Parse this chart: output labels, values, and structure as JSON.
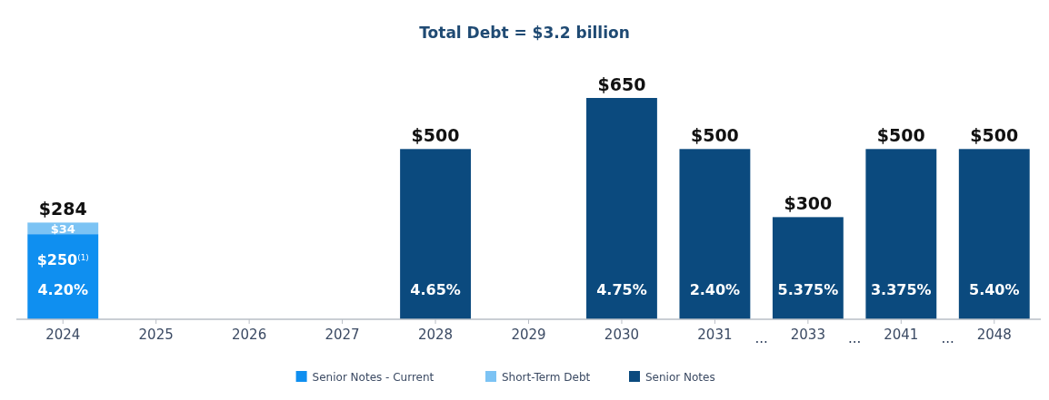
{
  "chart_data": {
    "type": "bar",
    "title": "Total Debt = $3.2 billion",
    "stacked": true,
    "legend": "bottom",
    "categories": [
      "2024",
      "2025",
      "2026",
      "2027",
      "2028",
      "2029",
      "2030",
      "2031",
      "2033",
      "2041",
      "2048"
    ],
    "series": [
      {
        "name": "Senior Notes - Current",
        "color": "#0f8ff0",
        "values": [
          250,
          null,
          null,
          null,
          null,
          null,
          null,
          null,
          null,
          null,
          null
        ],
        "value_labels": [
          "$250$^{(1)}$",
          null,
          null,
          null,
          null,
          null,
          null,
          null,
          null,
          null,
          null
        ]
      },
      {
        "name": "Short-Term Debt",
        "color": "#7cc3f4",
        "values": [
          34,
          null,
          null,
          null,
          null,
          null,
          null,
          null,
          null,
          null,
          null
        ],
        "value_labels": [
          "$34",
          null,
          null,
          null,
          null,
          null,
          null,
          null,
          null,
          null,
          null
        ]
      },
      {
        "name": "Senior Notes",
        "color": "#0b4a7e",
        "values": [
          null,
          null,
          null,
          null,
          500,
          null,
          650,
          500,
          300,
          500,
          500
        ]
      }
    ],
    "totals": [
      "$284",
      null,
      null,
      null,
      "$500",
      null,
      "$650",
      "$500",
      "$300",
      "$500",
      "$500"
    ],
    "annotations": [
      "4.20%",
      "4.65%",
      "4.75%",
      "2.40%",
      "5.375%",
      "3.375%",
      "5.40%",
      "...",
      "...",
      "..."
    ]
  }
}
